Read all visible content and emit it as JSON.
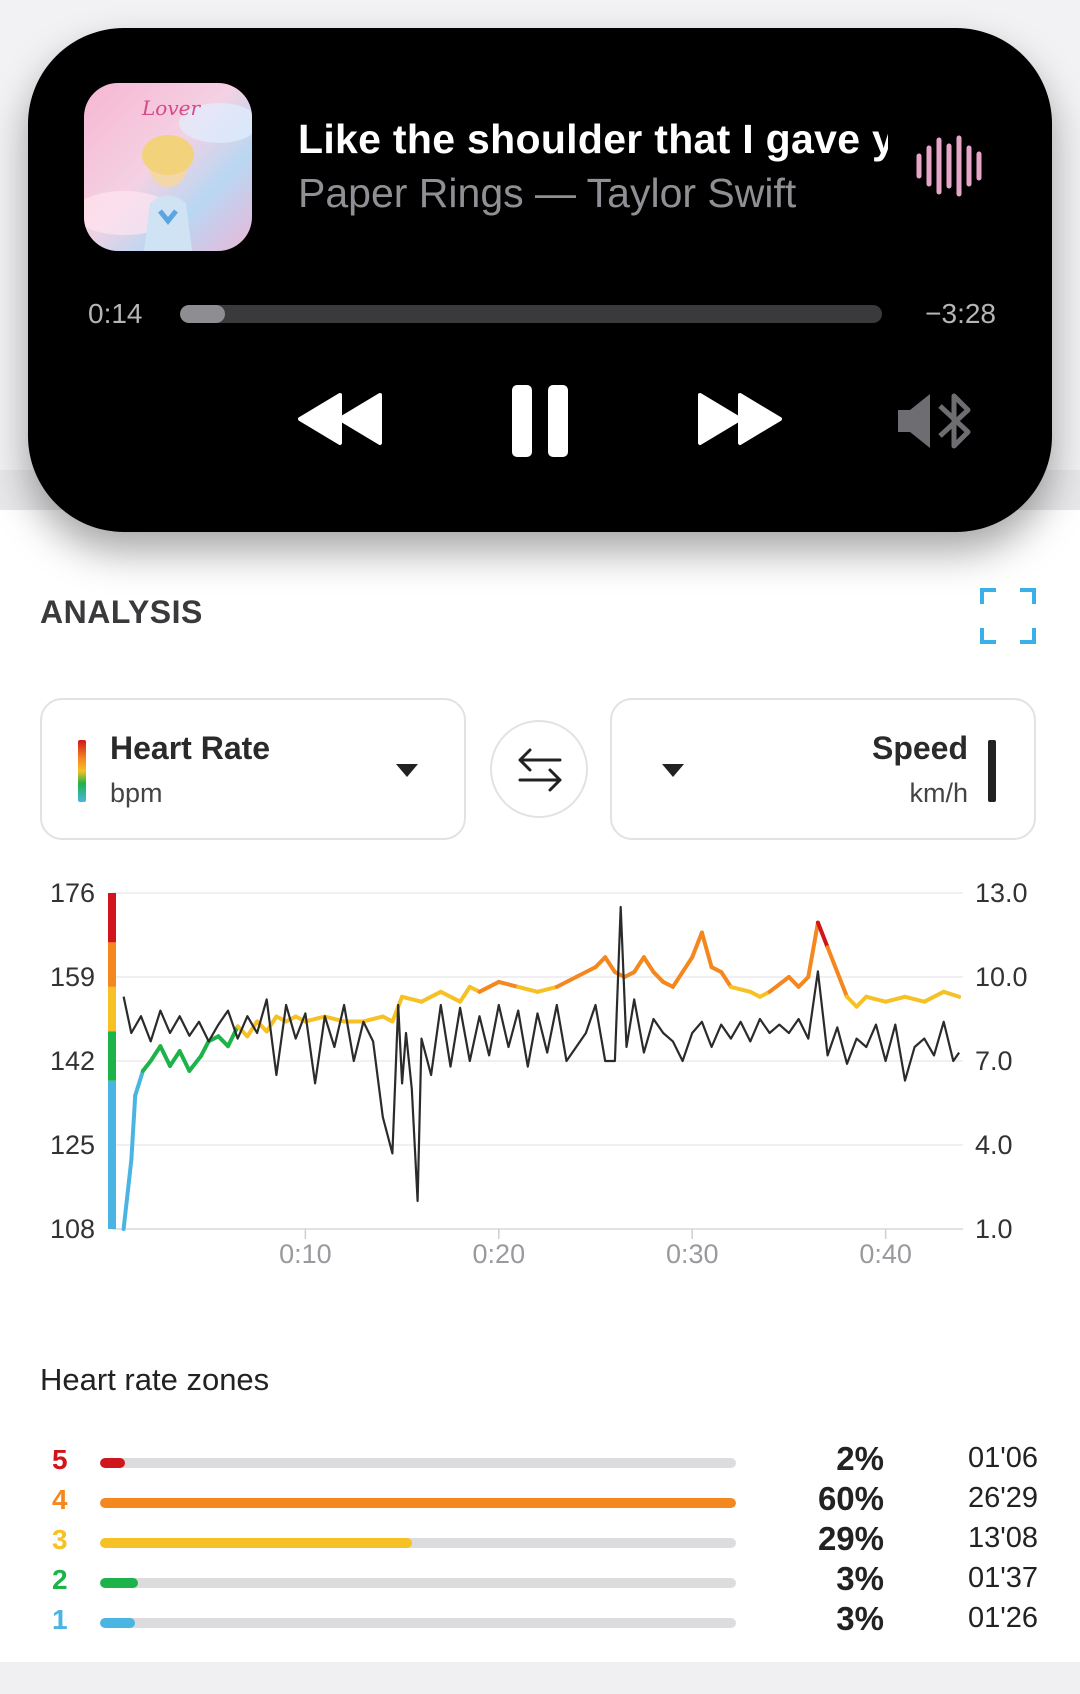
{
  "player": {
    "song_line": "Like the shoulder that I gave y",
    "artist_line": "Paper Rings — Taylor Swift",
    "album_script": "Lover",
    "elapsed": "0:14",
    "remaining": "−3:28",
    "progress_fraction": 0.064,
    "icons": [
      "waveform-icon",
      "rewind-icon",
      "pause-icon",
      "fast-forward-icon",
      "speaker-bluetooth-icon"
    ]
  },
  "analysis": {
    "title": "ANALYSIS",
    "left_metric": {
      "title": "Heart Rate",
      "unit": "bpm"
    },
    "right_metric": {
      "title": "Speed",
      "unit": "km/h"
    }
  },
  "chart_data": {
    "type": "line",
    "x_ticks": [
      "0:10",
      "0:20",
      "0:30",
      "0:40"
    ],
    "x_tick_minutes": [
      10,
      20,
      30,
      40
    ],
    "x_range_minutes": [
      0,
      44
    ],
    "y_left": {
      "ticks": [
        "176",
        "159",
        "142",
        "125",
        "108"
      ],
      "range": [
        108,
        176
      ],
      "unit": "bpm"
    },
    "y_right": {
      "ticks": [
        "13.0",
        "10.0",
        "7.0",
        "4.0",
        "1.0"
      ],
      "range": [
        1.0,
        13.0
      ],
      "unit": "km/h"
    },
    "zone_bands_bpm": [
      {
        "zone": 5,
        "from": 166,
        "to": 176,
        "color": "#d0161c"
      },
      {
        "zone": 4,
        "from": 157,
        "to": 166,
        "color": "#f5871f"
      },
      {
        "zone": 3,
        "from": 148,
        "to": 157,
        "color": "#f5c124"
      },
      {
        "zone": 2,
        "from": 138,
        "to": 148,
        "color": "#1db34a"
      },
      {
        "zone": 1,
        "from": 108,
        "to": 138,
        "color": "#4ab5e3"
      }
    ],
    "series": [
      {
        "name": "Heart Rate",
        "axis": "left",
        "points": [
          [
            0.6,
            108
          ],
          [
            1,
            122
          ],
          [
            1.2,
            135
          ],
          [
            1.6,
            140
          ],
          [
            2,
            142
          ],
          [
            2.5,
            145
          ],
          [
            3,
            141
          ],
          [
            3.5,
            144
          ],
          [
            4,
            140
          ],
          [
            4.6,
            143
          ],
          [
            5,
            146
          ],
          [
            5.5,
            147
          ],
          [
            6,
            145
          ],
          [
            6.5,
            149
          ],
          [
            7,
            147
          ],
          [
            7.5,
            150
          ],
          [
            8,
            148
          ],
          [
            8.5,
            151
          ],
          [
            9,
            150
          ],
          [
            9.5,
            151
          ],
          [
            10,
            150
          ],
          [
            11,
            151
          ],
          [
            12,
            150
          ],
          [
            13,
            150
          ],
          [
            14,
            151
          ],
          [
            14.5,
            150
          ],
          [
            15,
            155
          ],
          [
            16,
            154
          ],
          [
            17,
            156
          ],
          [
            18,
            154
          ],
          [
            18.5,
            157
          ],
          [
            19,
            156
          ],
          [
            20,
            158
          ],
          [
            21,
            157
          ],
          [
            22,
            156
          ],
          [
            23,
            157
          ],
          [
            24,
            159
          ],
          [
            25,
            161
          ],
          [
            25.5,
            163
          ],
          [
            26,
            160
          ],
          [
            26.5,
            159
          ],
          [
            27,
            160
          ],
          [
            27.5,
            163
          ],
          [
            28,
            160
          ],
          [
            28.5,
            158
          ],
          [
            29,
            157
          ],
          [
            29.5,
            160
          ],
          [
            30,
            163
          ],
          [
            30.5,
            168
          ],
          [
            31,
            161
          ],
          [
            31.5,
            160
          ],
          [
            32,
            157
          ],
          [
            33,
            156
          ],
          [
            33.5,
            155
          ],
          [
            34,
            156
          ],
          [
            35,
            159
          ],
          [
            35.5,
            157
          ],
          [
            36,
            159
          ],
          [
            36.5,
            170
          ],
          [
            37,
            165
          ],
          [
            37.5,
            160
          ],
          [
            38,
            155
          ],
          [
            38.5,
            153
          ],
          [
            39,
            155
          ],
          [
            40,
            154
          ],
          [
            41,
            155
          ],
          [
            42,
            154
          ],
          [
            43,
            156
          ],
          [
            43.8,
            155
          ]
        ]
      },
      {
        "name": "Speed",
        "axis": "right",
        "points": [
          [
            0.6,
            9.3
          ],
          [
            1,
            8.0
          ],
          [
            1.5,
            8.6
          ],
          [
            2,
            7.7
          ],
          [
            2.5,
            8.8
          ],
          [
            3,
            8.0
          ],
          [
            3.5,
            8.6
          ],
          [
            4,
            7.9
          ],
          [
            4.5,
            8.4
          ],
          [
            5,
            7.7
          ],
          [
            5.5,
            8.3
          ],
          [
            6,
            8.8
          ],
          [
            6.5,
            7.8
          ],
          [
            7,
            8.6
          ],
          [
            7.5,
            8.0
          ],
          [
            8,
            9.2
          ],
          [
            8.5,
            6.5
          ],
          [
            9,
            9.0
          ],
          [
            9.5,
            7.8
          ],
          [
            10,
            8.7
          ],
          [
            10.5,
            6.2
          ],
          [
            11,
            8.6
          ],
          [
            11.5,
            7.5
          ],
          [
            12,
            9.0
          ],
          [
            12.5,
            7.0
          ],
          [
            13,
            8.4
          ],
          [
            13.5,
            7.7
          ],
          [
            14,
            5.0
          ],
          [
            14.5,
            3.7
          ],
          [
            14.8,
            9.0
          ],
          [
            15,
            6.2
          ],
          [
            15.2,
            8.0
          ],
          [
            15.5,
            6.0
          ],
          [
            15.8,
            2.0
          ],
          [
            16,
            7.8
          ],
          [
            16.5,
            6.5
          ],
          [
            17,
            9.0
          ],
          [
            17.5,
            6.8
          ],
          [
            18,
            8.9
          ],
          [
            18.5,
            7.0
          ],
          [
            19,
            8.6
          ],
          [
            19.5,
            7.2
          ],
          [
            20,
            9.0
          ],
          [
            20.5,
            7.5
          ],
          [
            21,
            8.8
          ],
          [
            21.5,
            6.8
          ],
          [
            22,
            8.7
          ],
          [
            22.5,
            7.3
          ],
          [
            23,
            9.0
          ],
          [
            23.5,
            7.0
          ],
          [
            24,
            7.5
          ],
          [
            24.5,
            8.0
          ],
          [
            25,
            9.0
          ],
          [
            25.5,
            7.0
          ],
          [
            26,
            7.0
          ],
          [
            26.3,
            12.5
          ],
          [
            26.6,
            7.5
          ],
          [
            27,
            9.2
          ],
          [
            27.5,
            7.3
          ],
          [
            28,
            8.5
          ],
          [
            28.5,
            8.0
          ],
          [
            29,
            7.7
          ],
          [
            29.5,
            7.0
          ],
          [
            30,
            8.0
          ],
          [
            30.5,
            8.4
          ],
          [
            31,
            7.5
          ],
          [
            31.5,
            8.3
          ],
          [
            32,
            7.8
          ],
          [
            32.5,
            8.4
          ],
          [
            33,
            7.7
          ],
          [
            33.5,
            8.5
          ],
          [
            34,
            8.0
          ],
          [
            34.5,
            8.3
          ],
          [
            35,
            8.0
          ],
          [
            35.5,
            8.5
          ],
          [
            36,
            7.8
          ],
          [
            36.5,
            10.2
          ],
          [
            37,
            7.2
          ],
          [
            37.5,
            8.2
          ],
          [
            38,
            6.9
          ],
          [
            38.5,
            7.8
          ],
          [
            39,
            7.5
          ],
          [
            39.5,
            8.3
          ],
          [
            40,
            7.0
          ],
          [
            40.5,
            8.3
          ],
          [
            41,
            6.3
          ],
          [
            41.5,
            7.5
          ],
          [
            42,
            7.8
          ],
          [
            42.5,
            7.2
          ],
          [
            43,
            8.4
          ],
          [
            43.5,
            7.0
          ],
          [
            43.8,
            7.3
          ]
        ]
      }
    ]
  },
  "zones": {
    "title": "Heart rate zones",
    "rows": [
      {
        "zone": "5",
        "percent": "2%",
        "time": "01'06",
        "fraction": 0.04,
        "color": "#d0161c"
      },
      {
        "zone": "4",
        "percent": "60%",
        "time": "26'29",
        "fraction": 1.0,
        "color": "#f5871f"
      },
      {
        "zone": "3",
        "percent": "29%",
        "time": "13'08",
        "fraction": 0.49,
        "color": "#f5c124"
      },
      {
        "zone": "2",
        "percent": "3%",
        "time": "01'37",
        "fraction": 0.06,
        "color": "#1db34a"
      },
      {
        "zone": "1",
        "percent": "3%",
        "time": "01'26",
        "fraction": 0.055,
        "color": "#4ab5e3"
      }
    ]
  }
}
